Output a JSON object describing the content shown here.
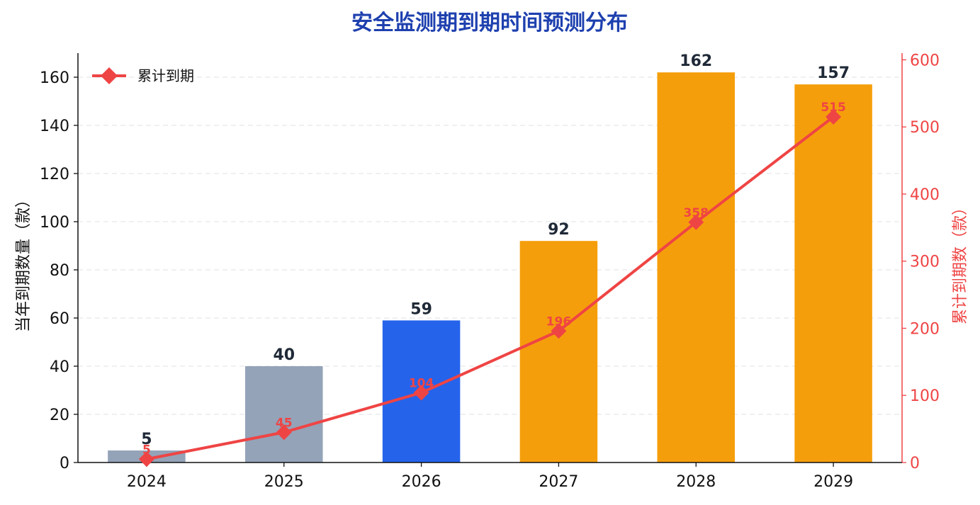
{
  "chart_data": {
    "type": "bar+line",
    "title": "安全监测期到期时间预测分布",
    "categories": [
      "2024",
      "2025",
      "2026",
      "2027",
      "2028",
      "2029"
    ],
    "series": [
      {
        "type": "bar",
        "axis": "left",
        "values": [
          5,
          40,
          59,
          92,
          162,
          157
        ],
        "colors": [
          "#94A3B8",
          "#94A3B8",
          "#2563EB",
          "#F59E0B",
          "#F59E0B",
          "#F59E0B"
        ]
      },
      {
        "name": "累计到期",
        "type": "line",
        "axis": "right",
        "values": [
          5,
          45,
          104,
          196,
          358,
          515
        ],
        "color": "#EF4444",
        "marker": "diamond"
      }
    ],
    "ylabel_left": "当年到期数量（款）",
    "ylabel_right": "累计到期数（款）",
    "ylim_left": [
      0,
      170
    ],
    "ylim_right": [
      0,
      610
    ],
    "yticks_left": [
      0,
      20,
      40,
      60,
      80,
      100,
      120,
      140,
      160
    ],
    "yticks_right": [
      0,
      100,
      200,
      300,
      400,
      500,
      600
    ],
    "grid": "horizontal-dashed",
    "legend_position": "top-left"
  },
  "colors": {
    "title": "#1E40AF",
    "axis": "#111111",
    "right_axis": "#EF4444",
    "grid": "#E5E7EB",
    "bar_label": "#1F2937"
  }
}
